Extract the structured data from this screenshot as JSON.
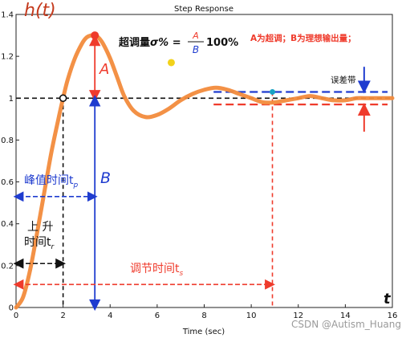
{
  "chart_data": {
    "type": "line",
    "title": "Step Response",
    "xlabel": "Time (sec)",
    "ylabel": "h(t)",
    "x_axis_letter": "t",
    "xlim": [
      0,
      16
    ],
    "ylim": [
      0,
      1.4
    ],
    "x_ticks": [
      0,
      2,
      4,
      6,
      8,
      10,
      12,
      14,
      16
    ],
    "y_ticks": [
      0,
      0.2,
      0.4,
      0.6,
      0.8,
      1,
      1.2,
      1.4
    ],
    "grid": false,
    "series": [
      {
        "color": "#f28b3c",
        "x": [
          0.0,
          0.3,
          0.6,
          0.9,
          1.2,
          1.5,
          1.8,
          2.0,
          2.2,
          2.5,
          2.8,
          3.0,
          3.2,
          3.35,
          3.5,
          3.7,
          4.0,
          4.3,
          4.6,
          5.0,
          5.5,
          6.0,
          6.5,
          7.0,
          7.5,
          8.0,
          8.5,
          9.0,
          9.5,
          10.0,
          10.5,
          11.0,
          11.5,
          12.0,
          12.5,
          13.0,
          13.5,
          14.0,
          14.5,
          15.0,
          15.5,
          16.0
        ],
        "y": [
          0.0,
          0.05,
          0.18,
          0.36,
          0.55,
          0.74,
          0.9,
          1.0,
          1.09,
          1.19,
          1.26,
          1.29,
          1.3,
          1.3,
          1.29,
          1.26,
          1.19,
          1.1,
          1.01,
          0.94,
          0.91,
          0.92,
          0.95,
          0.99,
          1.02,
          1.04,
          1.05,
          1.04,
          1.02,
          1.0,
          0.98,
          0.98,
          0.99,
          1.0,
          1.01,
          1.0,
          0.99,
          0.99,
          1.0,
          1.0,
          1.0,
          1.0
        ]
      }
    ],
    "reference_line": 1.0,
    "tolerance_band": [
      0.97,
      1.03
    ],
    "peak": {
      "x": 3.35,
      "y": 1.3
    },
    "rise_point": {
      "x": 2.0,
      "y": 1.0
    },
    "settle_point": {
      "x": 10.9,
      "y": 1.03
    },
    "decor_dot": {
      "x": 6.6,
      "y": 1.17
    },
    "annotations": {
      "overshoot_prefix": "超调量",
      "overshoot_symbol": "σ% =",
      "frac_num": "A",
      "frac_den": "B",
      "hundred": "100%",
      "legend_note": "A为超调；B为理想输出量；",
      "error_band": "误差带",
      "label_A": "A",
      "label_B": "B",
      "peak_time": "峰值时间t",
      "peak_sub": "p",
      "rise_time_1": "上 升",
      "rise_time_2": "时间t",
      "rise_sub": "r",
      "settle_time": "调节时间t",
      "settle_sub": "s"
    },
    "watermark": "CSDN @Autism_Huang",
    "colors": {
      "curve": "#f28b3c",
      "blue": "#1f3ccf",
      "red": "#ef3b2c",
      "black": "#111111",
      "background": "#ffffff",
      "marker_cyan": "#1aa3c4",
      "yellow": "#f2d21a"
    }
  }
}
